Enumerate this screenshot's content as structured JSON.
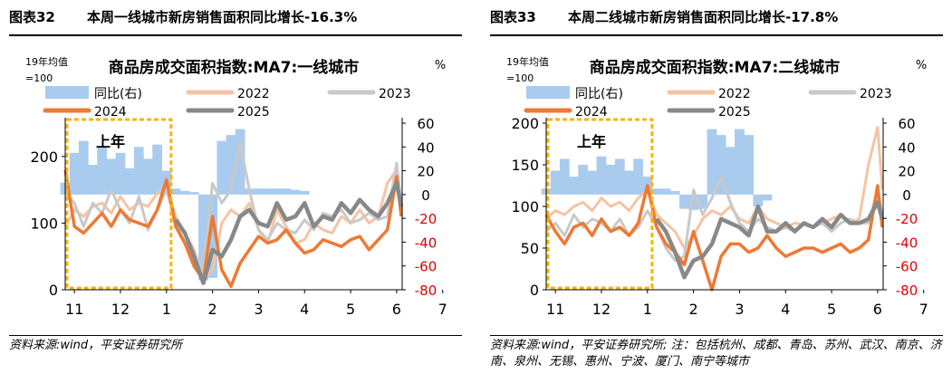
{
  "figures": [
    {
      "fig_label": "图表32",
      "fig_title": "本周一线城市新房销售面积同比增长-16.3%",
      "source": "资料来源:wind，平安证券研究所",
      "colors": {
        "yoy": "#a9cbee",
        "2022": "#f6c3a3",
        "2023": "#c9c9c9",
        "2024": "#ec7a35",
        "2025": "#888888",
        "right_axis": "#e00000",
        "box": "#f5b50e"
      },
      "chart_data": {
        "type": "line",
        "title": "商品房成交面积指数:MA7:一线城市",
        "left_unit": "19年均值\n=100",
        "right_unit": "%",
        "annotation": "上年",
        "xticks": [
          "11",
          "12",
          "1",
          "2",
          "3",
          "4",
          "5",
          "6",
          "7"
        ],
        "ylim_left": [
          0,
          250
        ],
        "yticks_left": [
          0,
          100,
          200
        ],
        "ylim_right": [
          -80,
          60
        ],
        "yticks_right": [
          -80,
          -60,
          -40,
          -20,
          0,
          20,
          40,
          60
        ],
        "x": [
          10.8,
          11.0,
          11.2,
          11.4,
          11.6,
          11.8,
          12.0,
          12.2,
          12.4,
          12.6,
          12.8,
          13.0,
          13.2,
          13.4,
          13.6,
          13.8,
          14.0,
          14.2,
          14.4,
          14.6,
          14.8,
          15.0,
          15.2,
          15.4,
          15.6,
          15.8,
          16.0,
          16.2,
          16.4,
          16.6,
          16.8,
          17.0,
          17.2,
          17.4,
          17.6,
          17.8,
          18.0,
          18.1
        ],
        "series": [
          {
            "name": "同比(右)",
            "axis": "right",
            "kind": "bar",
            "values": [
              10,
              35,
              45,
              25,
              40,
              30,
              35,
              22,
              40,
              30,
              42,
              20,
              5,
              3,
              2,
              -72,
              -70,
              45,
              50,
              55,
              5,
              5,
              5,
              5,
              5,
              4,
              3,
              null,
              null,
              null,
              null,
              null,
              null,
              null,
              null,
              null,
              null,
              null
            ]
          },
          {
            "name": "2022",
            "axis": "left",
            "values": [
              95,
              120,
              110,
              125,
              130,
              115,
              140,
              120,
              130,
              125,
              145,
              150,
              110,
              85,
              60,
              15,
              30,
              100,
              120,
              110,
              130,
              90,
              70,
              120,
              95,
              70,
              75,
              100,
              90,
              85,
              110,
              100,
              120,
              100,
              110,
              160,
              180,
              120
            ]
          },
          {
            "name": "2023",
            "axis": "left",
            "values": [
              145,
              130,
              95,
              130,
              115,
              150,
              120,
              100,
              140,
              90,
              120,
              150,
              100,
              70,
              45,
              30,
              160,
              130,
              150,
              220,
              150,
              90,
              75,
              100,
              90,
              85,
              105,
              90,
              115,
              110,
              120,
              100,
              105,
              115,
              105,
              110,
              190,
              130
            ]
          },
          {
            "name": "2024",
            "axis": "left",
            "values": [
              180,
              95,
              85,
              100,
              115,
              95,
              120,
              105,
              100,
              95,
              120,
              165,
              95,
              70,
              35,
              15,
              110,
              30,
              5,
              40,
              60,
              80,
              70,
              75,
              90,
              70,
              55,
              60,
              75,
              70,
              65,
              75,
              80,
              60,
              75,
              90,
              170,
              110
            ]
          },
          {
            "name": "2025",
            "axis": "left",
            "values": [
              null,
              null,
              null,
              null,
              null,
              null,
              null,
              null,
              null,
              null,
              null,
              null,
              105,
              85,
              50,
              10,
              60,
              50,
              75,
              110,
              120,
              100,
              95,
              130,
              105,
              110,
              130,
              95,
              110,
              105,
              130,
              115,
              135,
              120,
              110,
              130,
              160,
              125
            ]
          }
        ]
      }
    },
    {
      "fig_label": "图表33",
      "fig_title": "本周二线城市新房销售面积同比增长-17.8%",
      "source": "资料来源:wind，平安证券研究所; 注：包括杭州、成都、青岛、苏州、武汉、南京、济南、泉州、无锡、惠州、宁波、厦门、南宁等城市",
      "colors": {
        "yoy": "#a9cbee",
        "2022": "#f6c3a3",
        "2023": "#c9c9c9",
        "2024": "#ec7a35",
        "2025": "#888888",
        "right_axis": "#e00000",
        "box": "#f5b50e"
      },
      "chart_data": {
        "type": "line",
        "title": "商品房成交面积指数:MA7:二线城市",
        "left_unit": "19年均值\n=100",
        "right_unit": "%",
        "annotation": "上年",
        "xticks": [
          "11",
          "12",
          "1",
          "2",
          "3",
          "4",
          "5",
          "6",
          "7"
        ],
        "ylim_left": [
          0,
          200
        ],
        "yticks_left": [
          0,
          50,
          100,
          150,
          200
        ],
        "ylim_right": [
          -80,
          60
        ],
        "yticks_right": [
          -80,
          -60,
          -40,
          -20,
          0,
          20,
          40,
          60
        ],
        "x": [
          10.8,
          11.0,
          11.2,
          11.4,
          11.6,
          11.8,
          12.0,
          12.2,
          12.4,
          12.6,
          12.8,
          13.0,
          13.2,
          13.4,
          13.6,
          13.8,
          14.0,
          14.2,
          14.4,
          14.6,
          14.8,
          15.0,
          15.2,
          15.4,
          15.6,
          15.8,
          16.0,
          16.2,
          16.4,
          16.6,
          16.8,
          17.0,
          17.2,
          17.4,
          17.6,
          17.8,
          18.0,
          18.1
        ],
        "series": [
          {
            "name": "同比(右)",
            "axis": "right",
            "kind": "bar",
            "values": [
              5,
              20,
              30,
              15,
              25,
              20,
              32,
              25,
              30,
              20,
              30,
              15,
              5,
              5,
              3,
              -12,
              -13,
              -12,
              55,
              50,
              40,
              55,
              50,
              -10,
              -5,
              null,
              null,
              null,
              null,
              null,
              null,
              null,
              null,
              null,
              null,
              null,
              null,
              null
            ]
          },
          {
            "name": "2022",
            "axis": "left",
            "values": [
              85,
              95,
              90,
              100,
              105,
              95,
              110,
              100,
              105,
              95,
              110,
              120,
              90,
              80,
              70,
              50,
              65,
              85,
              95,
              90,
              100,
              85,
              80,
              100,
              85,
              80,
              75,
              80,
              78,
              75,
              80,
              85,
              90,
              80,
              85,
              150,
              195,
              120
            ]
          },
          {
            "name": "2023",
            "axis": "left",
            "values": [
              70,
              80,
              65,
              90,
              75,
              85,
              80,
              70,
              85,
              65,
              75,
              95,
              75,
              50,
              35,
              40,
              120,
              90,
              110,
              135,
              105,
              80,
              70,
              85,
              75,
              70,
              75,
              70,
              80,
              75,
              80,
              70,
              80,
              85,
              80,
              80,
              120,
              90
            ]
          },
          {
            "name": "2024",
            "axis": "left",
            "values": [
              90,
              70,
              55,
              75,
              80,
              65,
              85,
              70,
              75,
              65,
              80,
              125,
              75,
              55,
              45,
              30,
              70,
              35,
              0,
              40,
              55,
              55,
              45,
              50,
              65,
              50,
              40,
              45,
              50,
              50,
              45,
              50,
              55,
              45,
              50,
              60,
              125,
              75
            ]
          },
          {
            "name": "2025",
            "axis": "left",
            "values": [
              null,
              null,
              null,
              null,
              null,
              null,
              null,
              null,
              null,
              null,
              null,
              null,
              85,
              70,
              45,
              15,
              35,
              40,
              55,
              85,
              80,
              75,
              65,
              100,
              70,
              70,
              80,
              70,
              80,
              75,
              85,
              75,
              90,
              80,
              80,
              85,
              105,
              85
            ]
          }
        ]
      }
    }
  ]
}
